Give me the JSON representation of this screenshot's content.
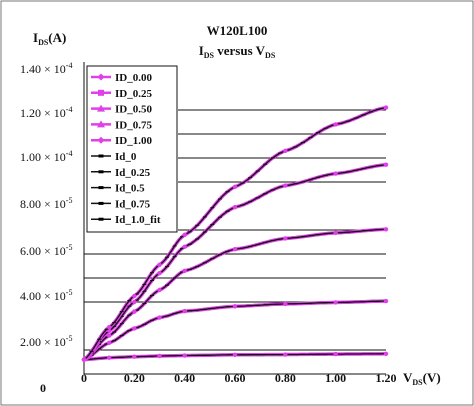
{
  "chart_data": {
    "type": "line",
    "title": "W120L100",
    "subtitle": {
      "main": "I",
      "sub1": "DS",
      "mid": " versus V",
      "sub2": "DS"
    },
    "ylabel": {
      "main": "I",
      "sub": "DS",
      "unit": "(A)"
    },
    "xlabel": {
      "main": "V",
      "sub": "DS",
      "unit": "(V)"
    },
    "xlim": [
      0,
      1.2
    ],
    "ylim": [
      1e-05,
      0.00014
    ],
    "x_ticks": [
      "0",
      "0.20",
      "0.40",
      "0.60",
      "0.80",
      "1.00",
      "1.20"
    ],
    "x_tick_values": [
      0,
      0.2,
      0.4,
      0.6,
      0.8,
      1.0,
      1.2
    ],
    "y_ticks": [
      {
        "mant": "1.40 × 10",
        "exp": "-4"
      },
      {
        "mant": "1.20 × 10",
        "exp": "-4"
      },
      {
        "mant": "1.00 × 10",
        "exp": "-4"
      },
      {
        "mant": "8.00 × 10",
        "exp": "-5"
      },
      {
        "mant": "6.00 × 10",
        "exp": "-5"
      },
      {
        "mant": "4.00 × 10",
        "exp": "-5"
      },
      {
        "mant": "2.00 × 10",
        "exp": "-5"
      },
      {
        "mant": "0",
        "exp": ""
      }
    ],
    "gridline_values": [
      2e-05,
      4e-05,
      5e-05,
      6e-05,
      7e-05,
      9e-05,
      0.0001,
      0.00011,
      0.00012
    ],
    "grid": true,
    "legend_position": "top-left",
    "legend": [
      {
        "name": "ID_0.00",
        "marker": "diamond",
        "color": "#e040e8"
      },
      {
        "name": "ID_0.25",
        "marker": "square",
        "color": "#e040e8"
      },
      {
        "name": "ID_0.50",
        "marker": "triangle",
        "color": "#e040e8"
      },
      {
        "name": "ID_0.75",
        "marker": "triangle",
        "color": "#e040e8"
      },
      {
        "name": "ID_1.00",
        "marker": "diamond",
        "color": "#e040e8"
      },
      {
        "name": "Id_0",
        "marker": "dash",
        "color": "#111111"
      },
      {
        "name": "Id_0.25",
        "marker": "dash",
        "color": "#111111"
      },
      {
        "name": "Id_0.5",
        "marker": "dash",
        "color": "#111111"
      },
      {
        "name": "Id_0.75",
        "marker": "dash",
        "color": "#111111"
      },
      {
        "name": "Id_1.0_fit",
        "marker": "dash",
        "color": "#111111"
      }
    ],
    "series": [
      {
        "name": "ID_0.00",
        "x": [
          0,
          0.1,
          0.2,
          0.3,
          0.4,
          0.6,
          0.8,
          1.0,
          1.2
        ],
        "values": [
          1.6e-05,
          1.68e-05,
          1.72e-05,
          1.75e-05,
          1.77e-05,
          1.8e-05,
          1.81e-05,
          1.83e-05,
          1.84e-05
        ]
      },
      {
        "name": "ID_0.25",
        "x": [
          0,
          0.1,
          0.2,
          0.3,
          0.4,
          0.6,
          0.8,
          1.0,
          1.2
        ],
        "values": [
          1.6e-05,
          2.3e-05,
          2.9e-05,
          3.35e-05,
          3.62e-05,
          3.82e-05,
          3.92e-05,
          3.98e-05,
          4.04e-05
        ]
      },
      {
        "name": "ID_0.50",
        "x": [
          0,
          0.1,
          0.2,
          0.3,
          0.4,
          0.6,
          0.8,
          1.0,
          1.2
        ],
        "values": [
          1.6e-05,
          2.6e-05,
          3.6e-05,
          4.5e-05,
          5.3e-05,
          6.2e-05,
          6.65e-05,
          6.88e-05,
          7.03e-05
        ]
      },
      {
        "name": "ID_0.75",
        "x": [
          0,
          0.1,
          0.2,
          0.3,
          0.4,
          0.6,
          0.8,
          1.0,
          1.2
        ],
        "values": [
          1.6e-05,
          2.8e-05,
          4e-05,
          5.2e-05,
          6.3e-05,
          7.95e-05,
          8.85e-05,
          9.35e-05,
          9.72e-05
        ]
      },
      {
        "name": "ID_1.00",
        "x": [
          0,
          0.1,
          0.2,
          0.3,
          0.4,
          0.6,
          0.8,
          1.0,
          1.2
        ],
        "values": [
          1.6e-05,
          2.95e-05,
          4.25e-05,
          5.55e-05,
          6.8e-05,
          8.8e-05,
          0.000103,
          0.000114,
          0.000121
        ]
      }
    ],
    "fit_color": "#111111",
    "data_color": "#e040e8"
  }
}
